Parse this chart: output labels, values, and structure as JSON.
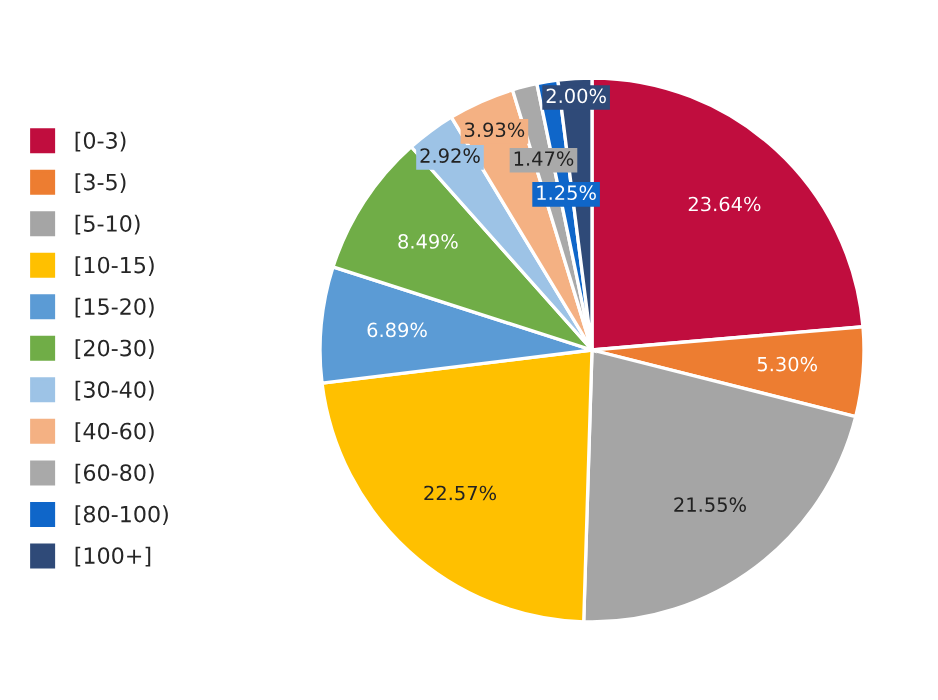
{
  "chart_data": {
    "type": "pie",
    "categories": [
      "[0-3)",
      "[3-5)",
      "[5-10)",
      "[10-15)",
      "[15-20)",
      "[20-30)",
      "[30-40)",
      "[40-60)",
      "[60-80)",
      "[80-100)",
      "[100+]"
    ],
    "values": [
      23.64,
      5.3,
      21.55,
      22.57,
      6.89,
      8.49,
      2.92,
      3.93,
      1.47,
      1.25,
      2.0
    ],
    "value_labels": [
      "23.64%",
      "5.30%",
      "21.55%",
      "22.57%",
      "6.89%",
      "8.49%",
      "2.92%",
      "3.93%",
      "1.47%",
      "1.25%",
      "2.00%"
    ],
    "colors": [
      "#c00d3e",
      "#ed7d31",
      "#a5a5a5",
      "#ffc000",
      "#5b9bd5",
      "#70ad47",
      "#9dc3e6",
      "#f4b183",
      "#a9a9a9",
      "#0f66c9",
      "#2f4a78"
    ],
    "legend": "left"
  }
}
